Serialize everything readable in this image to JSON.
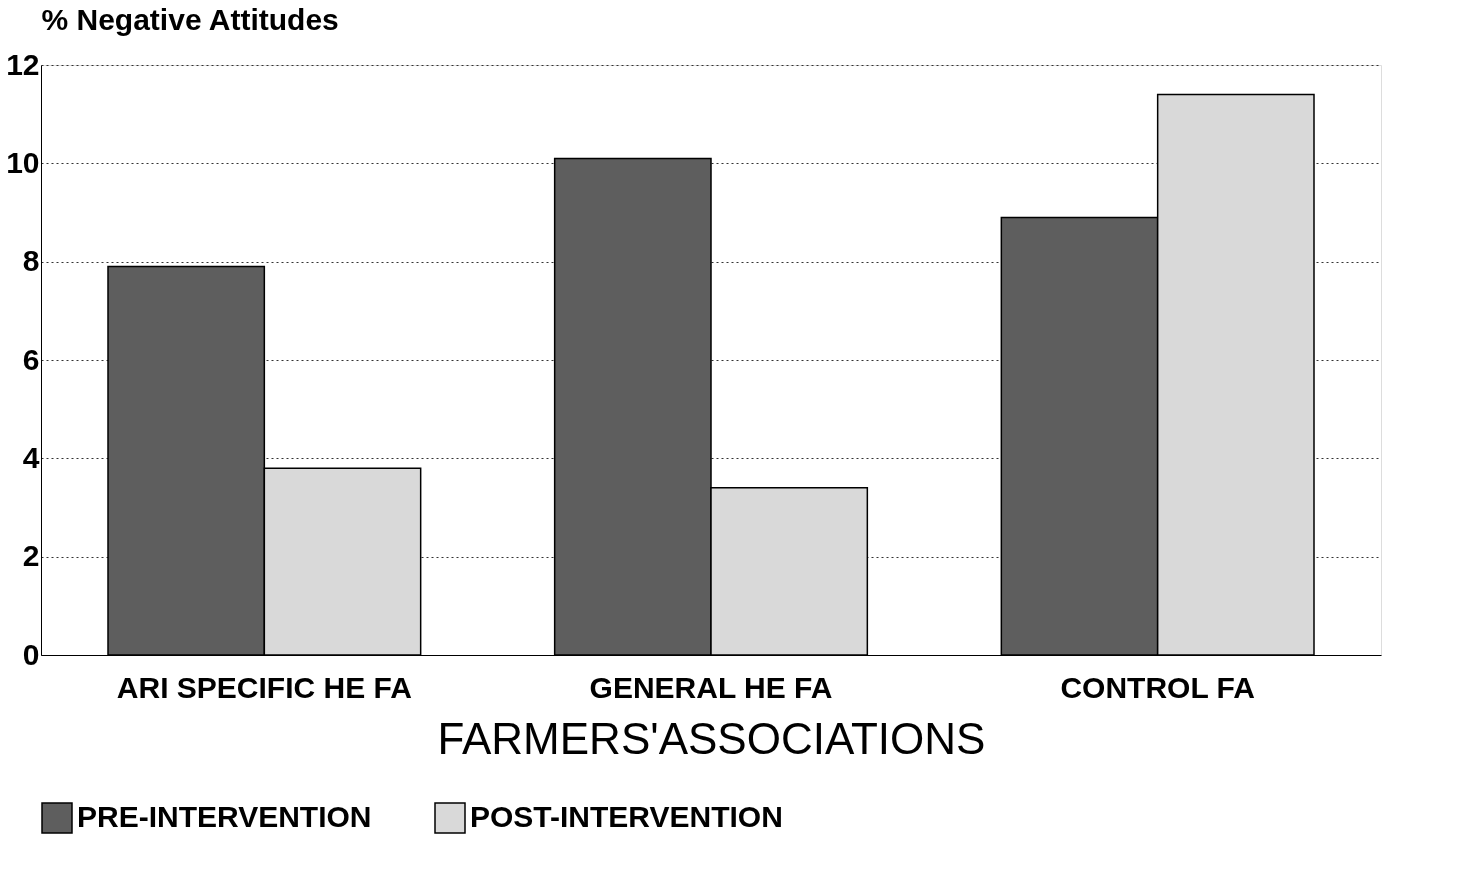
{
  "chart_data": {
    "type": "bar",
    "ylabel": "% Negative Attitudes",
    "xlabel": "FARMERS'ASSOCIATIONS",
    "categories": [
      "ARI SPECIFIC HE FA",
      "GENERAL HE FA",
      "CONTROL FA"
    ],
    "series": [
      {
        "name": "PRE-INTERVENTION",
        "color": "#5e5e5e",
        "values": [
          7.9,
          10.1,
          8.9
        ]
      },
      {
        "name": "POST-INTERVENTION",
        "color": "#d9d9d9",
        "values": [
          3.8,
          3.4,
          11.4
        ]
      }
    ],
    "ylim": [
      0,
      12
    ],
    "yticks": [
      0,
      2,
      4,
      6,
      8,
      10,
      12
    ],
    "grid": "y",
    "legend": "bottom"
  }
}
